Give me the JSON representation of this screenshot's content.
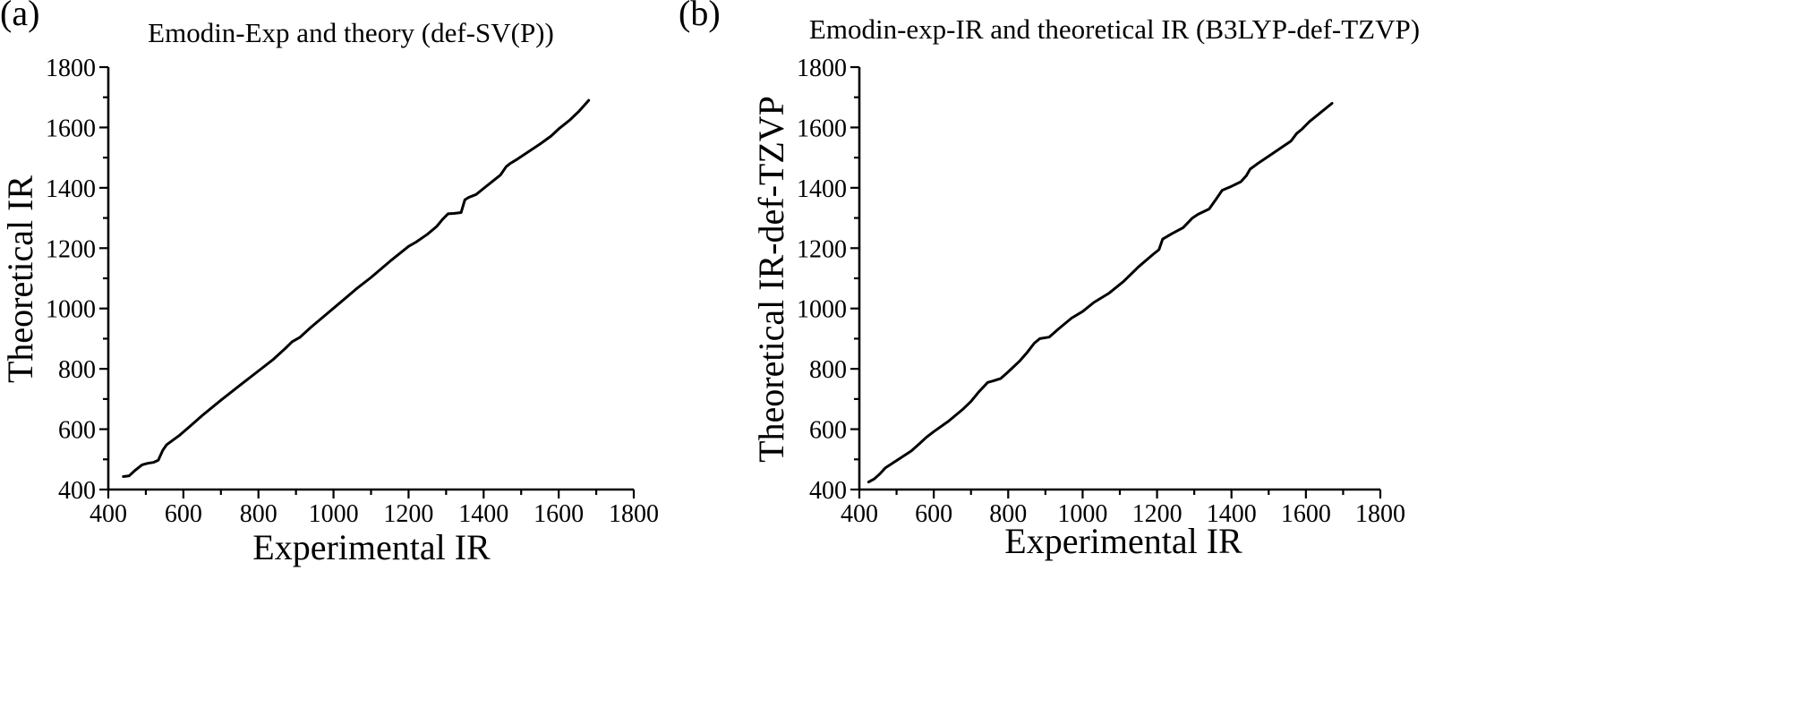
{
  "chart_data": [
    {
      "type": "line",
      "panel_label": "(a)",
      "title": "Emodin-Exp and theory (def-SV(P))",
      "xlabel": "Experimental IR",
      "ylabel": "Theoretical IR",
      "xlim": [
        400,
        1800
      ],
      "ylim": [
        400,
        1800
      ],
      "xticks": [
        400,
        600,
        800,
        1000,
        1200,
        1400,
        1600,
        1800
      ],
      "yticks": [
        400,
        600,
        800,
        1000,
        1200,
        1400,
        1600,
        1800
      ],
      "grid": false,
      "series": [
        {
          "x": [
            440,
            455,
            470,
            490,
            505,
            520,
            533,
            545,
            555,
            570,
            590,
            620,
            650,
            700,
            750,
            800,
            840,
            870,
            890,
            910,
            940,
            980,
            1020,
            1060,
            1100,
            1150,
            1200,
            1220,
            1250,
            1275,
            1290,
            1305,
            1320,
            1340,
            1350,
            1360,
            1380,
            1400,
            1420,
            1445,
            1460,
            1470,
            1490,
            1520,
            1550,
            1580,
            1600,
            1630,
            1655,
            1680
          ],
          "y": [
            443,
            445,
            462,
            482,
            487,
            490,
            497,
            530,
            548,
            562,
            580,
            612,
            645,
            696,
            745,
            793,
            832,
            866,
            890,
            904,
            938,
            980,
            1022,
            1064,
            1103,
            1156,
            1206,
            1220,
            1246,
            1272,
            1295,
            1314,
            1315,
            1318,
            1360,
            1368,
            1378,
            1398,
            1418,
            1443,
            1470,
            1480,
            1495,
            1520,
            1545,
            1572,
            1595,
            1625,
            1655,
            1690
          ]
        }
      ]
    },
    {
      "type": "line",
      "panel_label": "(b)",
      "title": "Emodin-exp-IR and theoretical IR (B3LYP-def-TZVP)",
      "xlabel": "Experimental IR",
      "ylabel": "Theoretical IR-def-TZVP",
      "xlim": [
        400,
        1800
      ],
      "ylim": [
        400,
        1800
      ],
      "xticks": [
        400,
        600,
        800,
        1000,
        1200,
        1400,
        1600,
        1800
      ],
      "yticks": [
        400,
        600,
        800,
        1000,
        1200,
        1400,
        1600,
        1800
      ],
      "grid": false,
      "series": [
        {
          "x": [
            425,
            440,
            455,
            470,
            500,
            540,
            560,
            580,
            600,
            640,
            680,
            700,
            720,
            745,
            760,
            780,
            800,
            830,
            850,
            870,
            885,
            910,
            935,
            970,
            1000,
            1030,
            1070,
            1110,
            1150,
            1190,
            1205,
            1215,
            1240,
            1270,
            1295,
            1310,
            1340,
            1360,
            1375,
            1400,
            1425,
            1440,
            1450,
            1470,
            1500,
            1530,
            1560,
            1575,
            1590,
            1610,
            1640,
            1670
          ],
          "y": [
            425,
            435,
            452,
            472,
            496,
            528,
            550,
            573,
            592,
            627,
            668,
            692,
            722,
            755,
            760,
            768,
            790,
            825,
            853,
            885,
            900,
            905,
            932,
            968,
            990,
            1020,
            1050,
            1090,
            1138,
            1180,
            1195,
            1230,
            1248,
            1268,
            1300,
            1312,
            1330,
            1365,
            1392,
            1405,
            1420,
            1440,
            1462,
            1480,
            1505,
            1530,
            1555,
            1580,
            1595,
            1620,
            1650,
            1680
          ]
        }
      ]
    }
  ]
}
